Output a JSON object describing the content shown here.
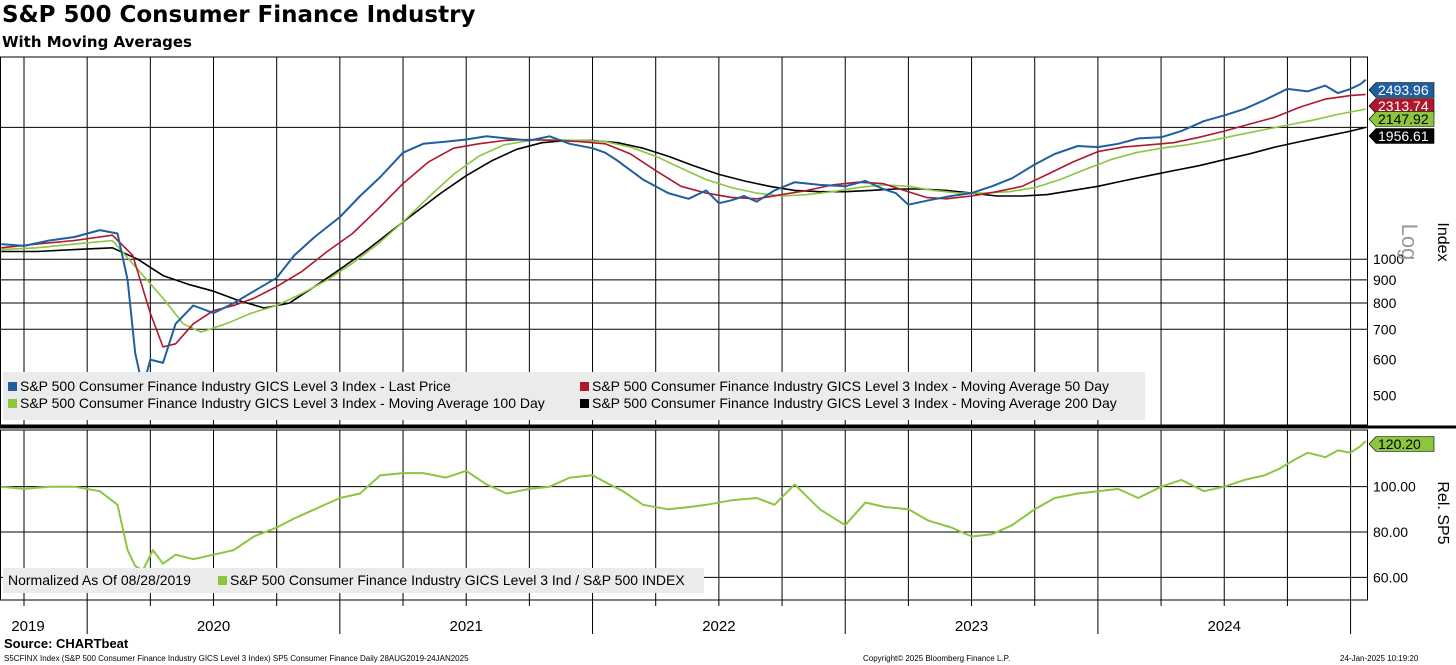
{
  "header": {
    "title": "S&P 500 Consumer Finance Industry",
    "subtitle": "With Moving Averages"
  },
  "footer": {
    "source": "Source: CHARTbeat",
    "left": "S5CFINX Index (S&P 500 Consumer Finance Industry GICS Level 3 Index) SP5 Consumer Finance  Daily 28AUG2019-24JAN2025",
    "center": "Copyright© 2025 Bloomberg Finance L.P.",
    "right": "24-Jan-2025 10:19:20"
  },
  "colors": {
    "price": "#1f5fa0",
    "ma50": "#b0172c",
    "ma100": "#8cc63f",
    "ma200": "#000000",
    "relative": "#8cc63f",
    "grid": "#000000",
    "legend_bg": "#ebebeb"
  },
  "chart_data": [
    {
      "type": "line",
      "title": "S&P 500 Consumer Finance Industry",
      "ylabel": "Index",
      "y_scale_label": "Log",
      "scale": "log",
      "ylim": [
        430,
        2800
      ],
      "xlim": [
        2019.655,
        2025.065
      ],
      "year_ticks": [
        "2019",
        "2020",
        "2021",
        "2022",
        "2023",
        "2024"
      ],
      "yticks": [
        500,
        600,
        700,
        800,
        900,
        1000
      ],
      "hlines": [
        1000,
        900,
        800,
        700,
        1956.61
      ],
      "series": [
        {
          "name": "S&P 500 Consumer Finance Industry GICS Level 3 Index - Last Price",
          "last_value": "2493.96",
          "color_key": "price",
          "x": [
            2019.66,
            2019.75,
            2019.85,
            2019.95,
            2020.05,
            2020.12,
            2020.16,
            2020.19,
            2020.22,
            2020.25,
            2020.3,
            2020.35,
            2020.42,
            2020.5,
            2020.58,
            2020.66,
            2020.75,
            2020.82,
            2020.9,
            2021.0,
            2021.08,
            2021.16,
            2021.25,
            2021.33,
            2021.42,
            2021.5,
            2021.58,
            2021.66,
            2021.75,
            2021.83,
            2021.91,
            2022.0,
            2022.05,
            2022.1,
            2022.2,
            2022.3,
            2022.38,
            2022.45,
            2022.5,
            2022.55,
            2022.6,
            2022.65,
            2022.72,
            2022.8,
            2022.9,
            2023.0,
            2023.08,
            2023.15,
            2023.2,
            2023.25,
            2023.33,
            2023.42,
            2023.5,
            2023.58,
            2023.66,
            2023.75,
            2023.83,
            2023.92,
            2024.0,
            2024.08,
            2024.16,
            2024.25,
            2024.33,
            2024.42,
            2024.5,
            2024.58,
            2024.66,
            2024.75,
            2024.83,
            2024.9,
            2024.95,
            2025.0,
            2025.04,
            2025.06
          ],
          "values": [
            1080,
            1070,
            1100,
            1120,
            1160,
            1140,
            900,
            620,
            520,
            600,
            590,
            720,
            790,
            760,
            800,
            850,
            910,
            1020,
            1120,
            1240,
            1380,
            1520,
            1720,
            1800,
            1820,
            1840,
            1870,
            1850,
            1830,
            1870,
            1800,
            1760,
            1720,
            1650,
            1500,
            1400,
            1360,
            1420,
            1330,
            1350,
            1380,
            1340,
            1420,
            1480,
            1460,
            1450,
            1490,
            1430,
            1400,
            1320,
            1350,
            1380,
            1400,
            1450,
            1510,
            1620,
            1710,
            1780,
            1770,
            1800,
            1850,
            1860,
            1920,
            2020,
            2080,
            2150,
            2250,
            2380,
            2350,
            2420,
            2330,
            2380,
            2440,
            2494
          ]
        },
        {
          "name": "S&P 500 Consumer Finance Industry GICS Level 3 Index - Moving Average 50 Day",
          "last_value": "2313.74",
          "color_key": "ma50",
          "x": [
            2019.66,
            2019.8,
            2019.95,
            2020.1,
            2020.18,
            2020.25,
            2020.3,
            2020.35,
            2020.42,
            2020.5,
            2020.58,
            2020.66,
            2020.75,
            2020.85,
            2020.95,
            2021.05,
            2021.15,
            2021.25,
            2021.35,
            2021.45,
            2021.55,
            2021.65,
            2021.75,
            2021.85,
            2021.95,
            2022.05,
            2022.15,
            2022.25,
            2022.35,
            2022.45,
            2022.55,
            2022.65,
            2022.75,
            2022.85,
            2022.95,
            2023.05,
            2023.15,
            2023.25,
            2023.32,
            2023.4,
            2023.5,
            2023.6,
            2023.7,
            2023.8,
            2023.9,
            2024.0,
            2024.1,
            2024.2,
            2024.3,
            2024.4,
            2024.5,
            2024.6,
            2024.7,
            2024.8,
            2024.9,
            2025.0,
            2025.06
          ],
          "values": [
            1060,
            1080,
            1100,
            1130,
            1020,
            760,
            640,
            650,
            720,
            770,
            790,
            820,
            870,
            940,
            1040,
            1140,
            1290,
            1470,
            1640,
            1760,
            1800,
            1830,
            1840,
            1830,
            1820,
            1800,
            1710,
            1570,
            1450,
            1400,
            1370,
            1360,
            1390,
            1420,
            1460,
            1480,
            1470,
            1410,
            1370,
            1360,
            1380,
            1410,
            1450,
            1540,
            1640,
            1730,
            1770,
            1790,
            1810,
            1860,
            1920,
            1990,
            2060,
            2170,
            2260,
            2300,
            2314
          ]
        },
        {
          "name": "S&P 500 Consumer Finance Industry GICS Level 3 Index - Moving Average 100 Day",
          "last_value": "2147.92",
          "color_key": "ma100",
          "x": [
            2019.66,
            2019.8,
            2019.95,
            2020.1,
            2020.2,
            2020.3,
            2020.38,
            2020.45,
            2020.55,
            2020.65,
            2020.75,
            2020.85,
            2020.95,
            2021.05,
            2021.15,
            2021.25,
            2021.35,
            2021.45,
            2021.55,
            2021.65,
            2021.75,
            2021.85,
            2021.95,
            2022.05,
            2022.15,
            2022.25,
            2022.35,
            2022.45,
            2022.55,
            2022.65,
            2022.75,
            2022.85,
            2022.95,
            2023.05,
            2023.15,
            2023.25,
            2023.35,
            2023.45,
            2023.55,
            2023.65,
            2023.75,
            2023.85,
            2023.95,
            2024.05,
            2024.15,
            2024.25,
            2024.35,
            2024.45,
            2024.55,
            2024.65,
            2024.75,
            2024.85,
            2024.95,
            2025.06
          ],
          "values": [
            1050,
            1060,
            1080,
            1100,
            950,
            820,
            720,
            690,
            720,
            760,
            790,
            840,
            900,
            980,
            1080,
            1210,
            1370,
            1540,
            1690,
            1790,
            1830,
            1840,
            1830,
            1820,
            1770,
            1690,
            1590,
            1500,
            1440,
            1400,
            1380,
            1390,
            1410,
            1440,
            1460,
            1450,
            1420,
            1400,
            1400,
            1410,
            1440,
            1500,
            1580,
            1660,
            1720,
            1760,
            1790,
            1830,
            1880,
            1930,
            1980,
            2030,
            2090,
            2148
          ]
        },
        {
          "name": "S&P 500 Consumer Finance Industry GICS Level 3 Index - Moving Average 200 Day",
          "last_value": "1956.61",
          "color_key": "ma200",
          "x": [
            2019.66,
            2019.8,
            2019.95,
            2020.1,
            2020.2,
            2020.3,
            2020.4,
            2020.5,
            2020.6,
            2020.7,
            2020.8,
            2020.9,
            2021.0,
            2021.1,
            2021.2,
            2021.3,
            2021.4,
            2021.5,
            2021.6,
            2021.7,
            2021.8,
            2021.9,
            2022.0,
            2022.1,
            2022.2,
            2022.3,
            2022.4,
            2022.5,
            2022.6,
            2022.7,
            2022.8,
            2022.9,
            2023.0,
            2023.1,
            2023.2,
            2023.3,
            2023.4,
            2023.5,
            2023.6,
            2023.7,
            2023.8,
            2023.9,
            2024.0,
            2024.1,
            2024.2,
            2024.3,
            2024.4,
            2024.5,
            2024.6,
            2024.7,
            2024.8,
            2024.9,
            2025.0,
            2025.06
          ],
          "values": [
            1040,
            1040,
            1050,
            1060,
            1000,
            920,
            880,
            850,
            810,
            780,
            800,
            870,
            950,
            1040,
            1150,
            1270,
            1400,
            1530,
            1650,
            1750,
            1810,
            1830,
            1830,
            1810,
            1760,
            1690,
            1610,
            1540,
            1490,
            1450,
            1420,
            1410,
            1410,
            1420,
            1430,
            1430,
            1420,
            1400,
            1380,
            1380,
            1390,
            1420,
            1450,
            1490,
            1530,
            1570,
            1610,
            1660,
            1710,
            1770,
            1820,
            1870,
            1920,
            1957
          ]
        }
      ]
    },
    {
      "type": "line",
      "ylabel": "Rel. SP5",
      "ylim": [
        50,
        125
      ],
      "xlim": [
        2019.655,
        2025.065
      ],
      "yticks": [
        "60.00",
        "80.00",
        "100.00"
      ],
      "legend_note": "Normalized As Of 08/28/2019",
      "series": [
        {
          "name": "S&P 500 Consumer Finance Industry GICS Level 3 Ind / S&P 500 INDEX",
          "last_value": "120.20",
          "color_key": "relative",
          "x": [
            2019.66,
            2019.75,
            2019.85,
            2019.95,
            2020.05,
            2020.12,
            2020.16,
            2020.19,
            2020.22,
            2020.26,
            2020.3,
            2020.35,
            2020.42,
            2020.5,
            2020.58,
            2020.66,
            2020.75,
            2020.82,
            2020.9,
            2021.0,
            2021.08,
            2021.16,
            2021.25,
            2021.33,
            2021.42,
            2021.5,
            2021.58,
            2021.66,
            2021.75,
            2021.83,
            2021.91,
            2022.0,
            2022.05,
            2022.12,
            2022.2,
            2022.3,
            2022.38,
            2022.45,
            2022.55,
            2022.65,
            2022.72,
            2022.8,
            2022.9,
            2023.0,
            2023.08,
            2023.16,
            2023.25,
            2023.33,
            2023.42,
            2023.5,
            2023.58,
            2023.66,
            2023.75,
            2023.83,
            2023.92,
            2024.0,
            2024.08,
            2024.16,
            2024.25,
            2024.33,
            2024.42,
            2024.5,
            2024.58,
            2024.66,
            2024.72,
            2024.78,
            2024.83,
            2024.9,
            2024.95,
            2025.0,
            2025.04,
            2025.06
          ],
          "values": [
            100,
            99,
            100,
            100,
            98,
            92,
            72,
            65,
            63,
            72,
            66,
            70,
            68,
            70,
            72,
            78,
            82,
            86,
            90,
            95,
            97,
            105,
            106,
            106,
            104,
            107,
            101,
            97,
            99,
            100,
            104,
            105,
            102,
            98,
            92,
            90,
            91,
            92,
            94,
            95,
            92,
            101,
            90,
            83,
            93,
            91,
            90,
            85,
            82,
            78,
            79,
            83,
            90,
            95,
            97,
            98,
            99,
            95,
            100,
            103,
            98,
            100,
            103,
            105,
            108,
            112,
            115,
            113,
            116,
            115,
            118,
            120.2
          ]
        }
      ]
    }
  ]
}
